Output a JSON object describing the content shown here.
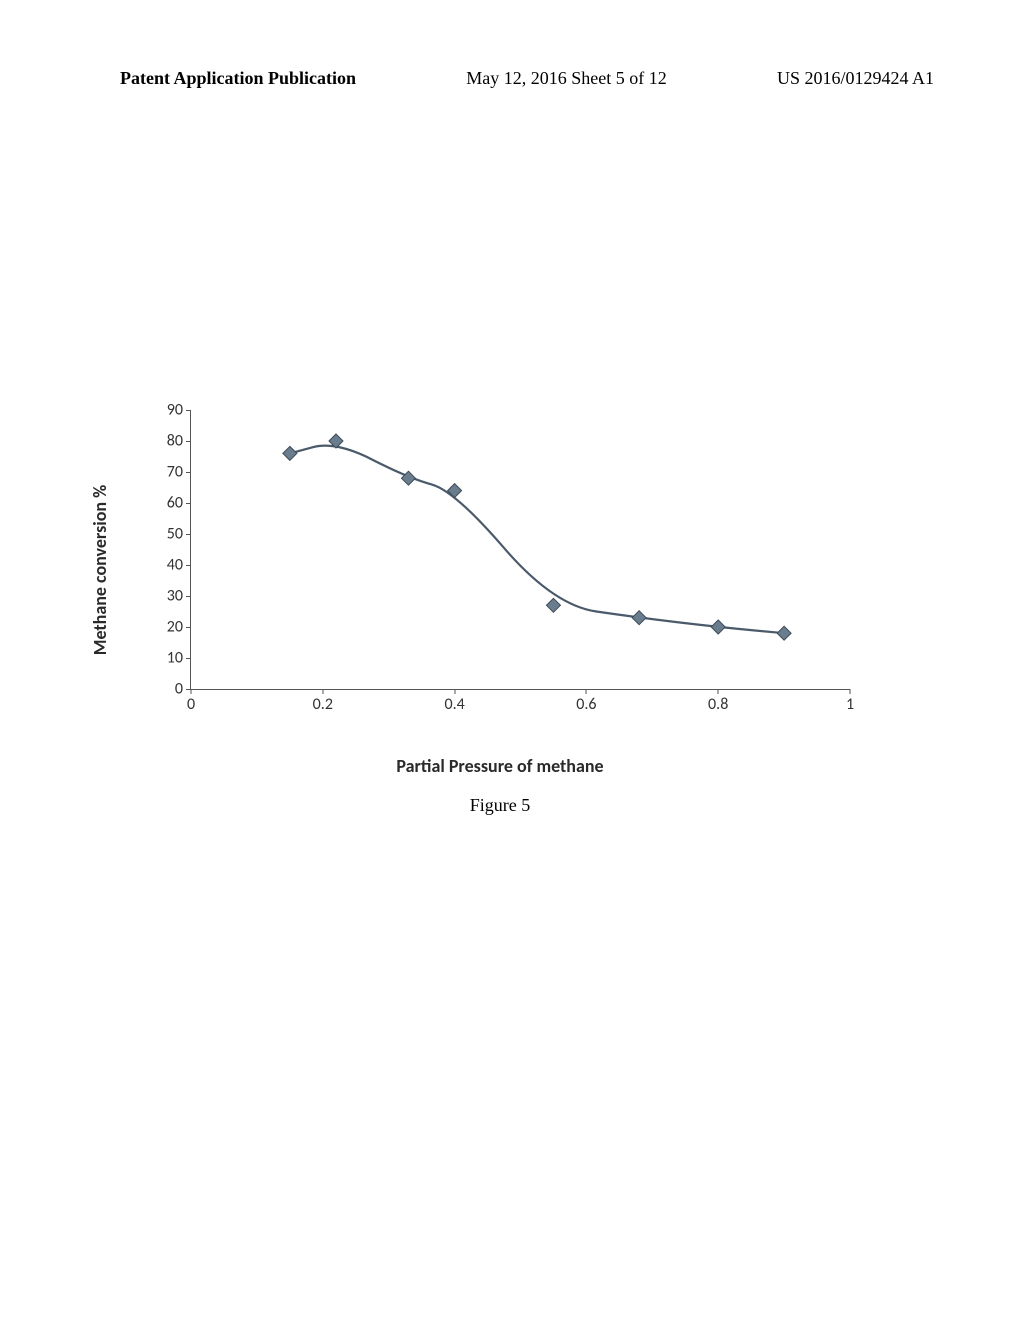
{
  "header": {
    "left": "Patent Application Publication",
    "center": "May 12, 2016  Sheet 5 of 12",
    "right": "US 2016/0129424 A1"
  },
  "chart": {
    "type": "line",
    "ylabel": "Methane conversion %",
    "xlabel": "Partial Pressure of methane",
    "caption": "Figure 5",
    "xlim": [
      0,
      1
    ],
    "ylim": [
      0,
      90
    ],
    "xtick_step": 0.2,
    "ytick_step": 10,
    "xticks": [
      "0",
      "0.2",
      "0.4",
      "0.6",
      "0.8",
      "1"
    ],
    "yticks": [
      "0",
      "10",
      "20",
      "30",
      "40",
      "50",
      "60",
      "70",
      "80",
      "90"
    ],
    "x": [
      0.15,
      0.22,
      0.33,
      0.4,
      0.55,
      0.68,
      0.8,
      0.9
    ],
    "y": [
      76,
      80,
      68,
      64,
      27,
      23,
      20,
      18
    ],
    "line_color": "#4a5a6a",
    "line_width": 2.2,
    "marker_fill": "#6a7d8f",
    "marker_stroke": "#3d4a57",
    "marker_size": 7,
    "marker_shape": "diamond",
    "axis_color": "#555555",
    "background_color": "#ffffff",
    "label_fontsize": 18,
    "tick_fontsize": 16,
    "font_family": "Calibri"
  }
}
